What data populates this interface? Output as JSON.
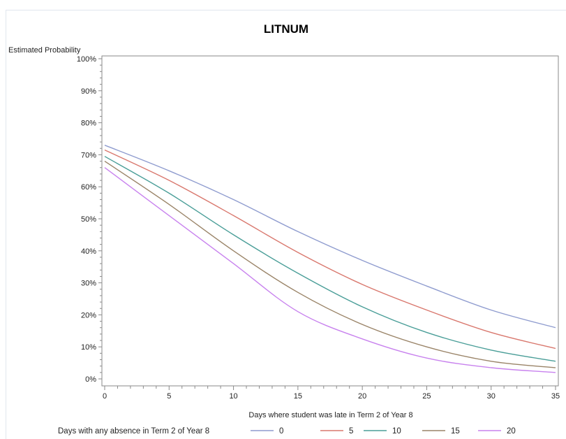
{
  "chart_data": {
    "type": "line",
    "title": "LITNUM",
    "ylabel": "Estimated Probability",
    "xlabel": "Days where student was late in Term 2 of Year 8",
    "xlim": [
      0,
      35
    ],
    "ylim": [
      0,
      100
    ],
    "x_ticks": [
      0,
      5,
      10,
      15,
      20,
      25,
      30,
      35
    ],
    "y_ticks": [
      0,
      10,
      20,
      30,
      40,
      50,
      60,
      70,
      80,
      90,
      100
    ],
    "y_tick_labels": [
      "0%",
      "10%",
      "20%",
      "30%",
      "40%",
      "50%",
      "60%",
      "70%",
      "80%",
      "90%",
      "100%"
    ],
    "grid": false,
    "legend_title": "Days with any absence in Term 2 of Year 8",
    "legend_position": "bottom",
    "x": [
      0,
      5,
      10,
      15,
      20,
      25,
      30,
      35
    ],
    "series": [
      {
        "name": "0",
        "color": "#8f9ccf",
        "values": [
          73,
          65,
          56,
          46,
          37,
          29,
          21.5,
          16
        ]
      },
      {
        "name": "5",
        "color": "#d9786e",
        "values": [
          71.5,
          62,
          51,
          39.5,
          29.5,
          21.5,
          14.5,
          9.5
        ]
      },
      {
        "name": "10",
        "color": "#4a9e98",
        "values": [
          69.5,
          58,
          45,
          33,
          22.5,
          14.5,
          9,
          5.5
        ]
      },
      {
        "name": "15",
        "color": "#9a8468",
        "values": [
          68,
          54.5,
          40,
          27,
          17,
          10,
          5.5,
          3.5
        ]
      },
      {
        "name": "20",
        "color": "#c882ee",
        "values": [
          66,
          51,
          36,
          21,
          12.5,
          6.5,
          3.5,
          2
        ]
      }
    ]
  }
}
